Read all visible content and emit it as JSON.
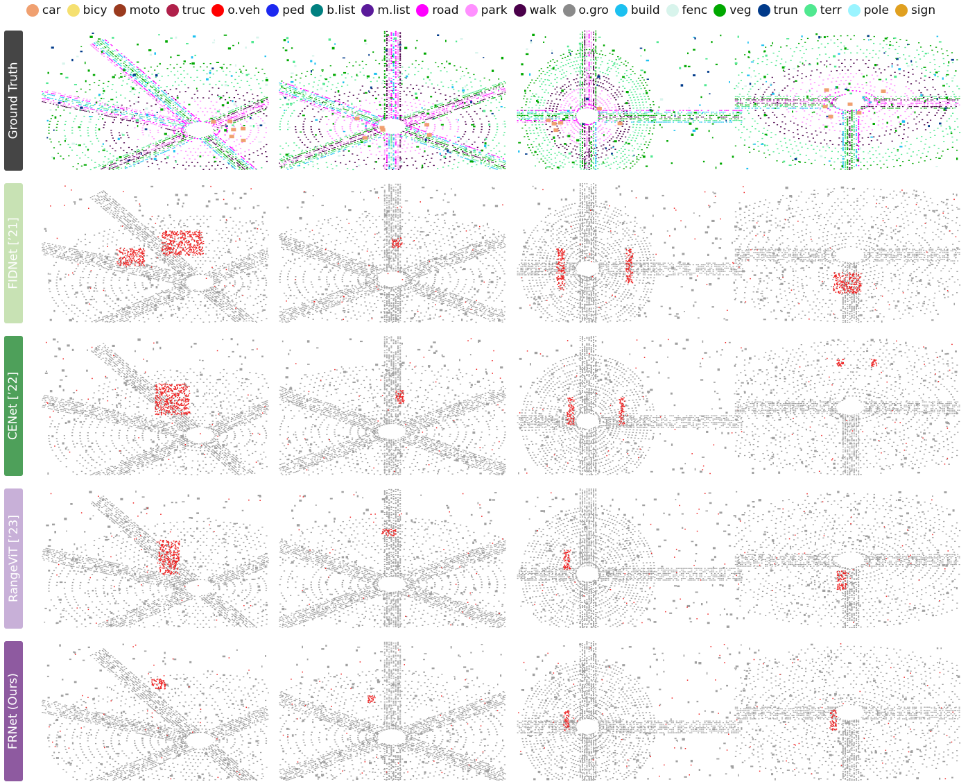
{
  "legend": [
    {
      "label": "car",
      "color": "#f0a070"
    },
    {
      "label": "bicy",
      "color": "#f5e070"
    },
    {
      "label": "moto",
      "color": "#9a3a1e"
    },
    {
      "label": "truc",
      "color": "#b0204a"
    },
    {
      "label": "o.veh",
      "color": "#ff0000"
    },
    {
      "label": "ped",
      "color": "#1c28f0"
    },
    {
      "label": "b.list",
      "color": "#008080"
    },
    {
      "label": "m.list",
      "color": "#5a1a9a"
    },
    {
      "label": "road",
      "color": "#ff00ff"
    },
    {
      "label": "park",
      "color": "#ff90ff"
    },
    {
      "label": "walk",
      "color": "#4a004a"
    },
    {
      "label": "o.gro",
      "color": "#8a8a8a"
    },
    {
      "label": "build",
      "color": "#1cc0f0"
    },
    {
      "label": "fenc",
      "color": "#d8f4ec"
    },
    {
      "label": "veg",
      "color": "#00a800"
    },
    {
      "label": "trun",
      "color": "#003a8a"
    },
    {
      "label": "terr",
      "color": "#50e890"
    },
    {
      "label": "pole",
      "color": "#9af4ff"
    },
    {
      "label": "sign",
      "color": "#e0a020"
    }
  ],
  "rows": [
    {
      "label": "Ground Truth",
      "color": "#454545"
    },
    {
      "label": "FIDNet [’21]",
      "color": "#c8e2b4"
    },
    {
      "label": "CENet [’22]",
      "color": "#4ea05a"
    },
    {
      "label": "RangeViT [’23]",
      "color": "#c8b0d8"
    },
    {
      "label": "FRNet (Ours)",
      "color": "#8e5aa0"
    }
  ],
  "colors": {
    "gray_point": "#a0a0a0",
    "error_point": "#ee2222"
  }
}
